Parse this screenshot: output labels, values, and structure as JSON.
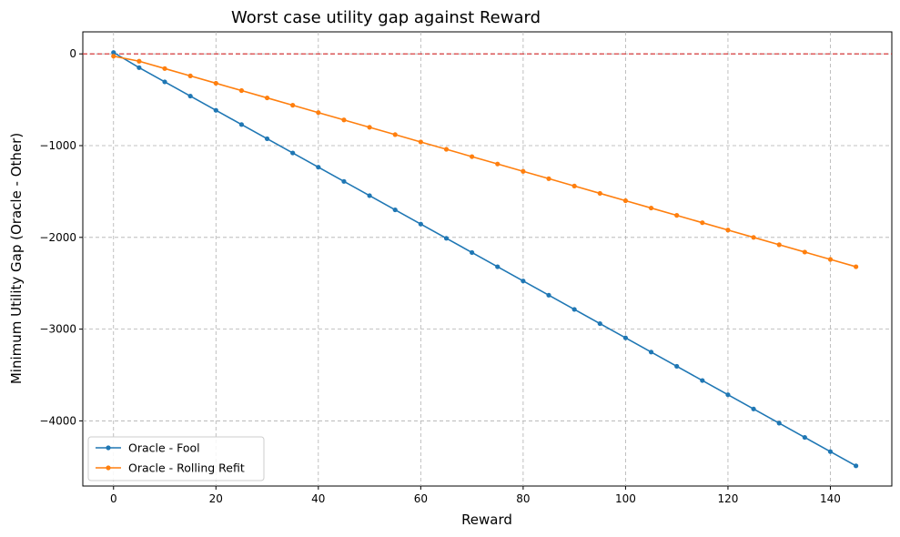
{
  "chart_data": {
    "type": "line",
    "title": "Worst case utility gap against Reward",
    "xlabel": "Reward",
    "ylabel": "Minimum Utility Gap (Oracle - Other)",
    "xlim": [
      -6,
      152
    ],
    "ylim": [
      -4710,
      240
    ],
    "xticks": [
      0,
      20,
      40,
      60,
      80,
      100,
      120,
      140
    ],
    "yticks": [
      0,
      -1000,
      -2000,
      -3000,
      -4000
    ],
    "ytick_labels": [
      "0",
      "−1000",
      "−2000",
      "−3000",
      "−4000"
    ],
    "grid": true,
    "legend_position": "lower-left",
    "reference_line": {
      "y": 0,
      "color": "#d62728",
      "style": "dashed"
    },
    "x": [
      0,
      5,
      10,
      15,
      20,
      25,
      30,
      35,
      40,
      45,
      50,
      55,
      60,
      65,
      70,
      75,
      80,
      85,
      90,
      95,
      100,
      105,
      110,
      115,
      120,
      125,
      130,
      135,
      140,
      145
    ],
    "series": [
      {
        "name": "Oracle - Fool",
        "color": "#1f77b4",
        "values": [
          15,
          -150,
          -305,
          -460,
          -615,
          -770,
          -925,
          -1080,
          -1235,
          -1390,
          -1545,
          -1700,
          -1855,
          -2010,
          -2165,
          -2320,
          -2475,
          -2630,
          -2785,
          -2940,
          -3095,
          -3250,
          -3405,
          -3560,
          -3715,
          -3870,
          -4025,
          -4180,
          -4335,
          -4490
        ]
      },
      {
        "name": "Oracle - Rolling Refit",
        "color": "#ff7f0e",
        "values": [
          -25,
          -80,
          -160,
          -240,
          -320,
          -400,
          -480,
          -560,
          -640,
          -720,
          -800,
          -880,
          -960,
          -1040,
          -1120,
          -1200,
          -1280,
          -1360,
          -1440,
          -1520,
          -1600,
          -1680,
          -1760,
          -1840,
          -1920,
          -2000,
          -2080,
          -2160,
          -2240,
          -2320
        ]
      }
    ]
  }
}
